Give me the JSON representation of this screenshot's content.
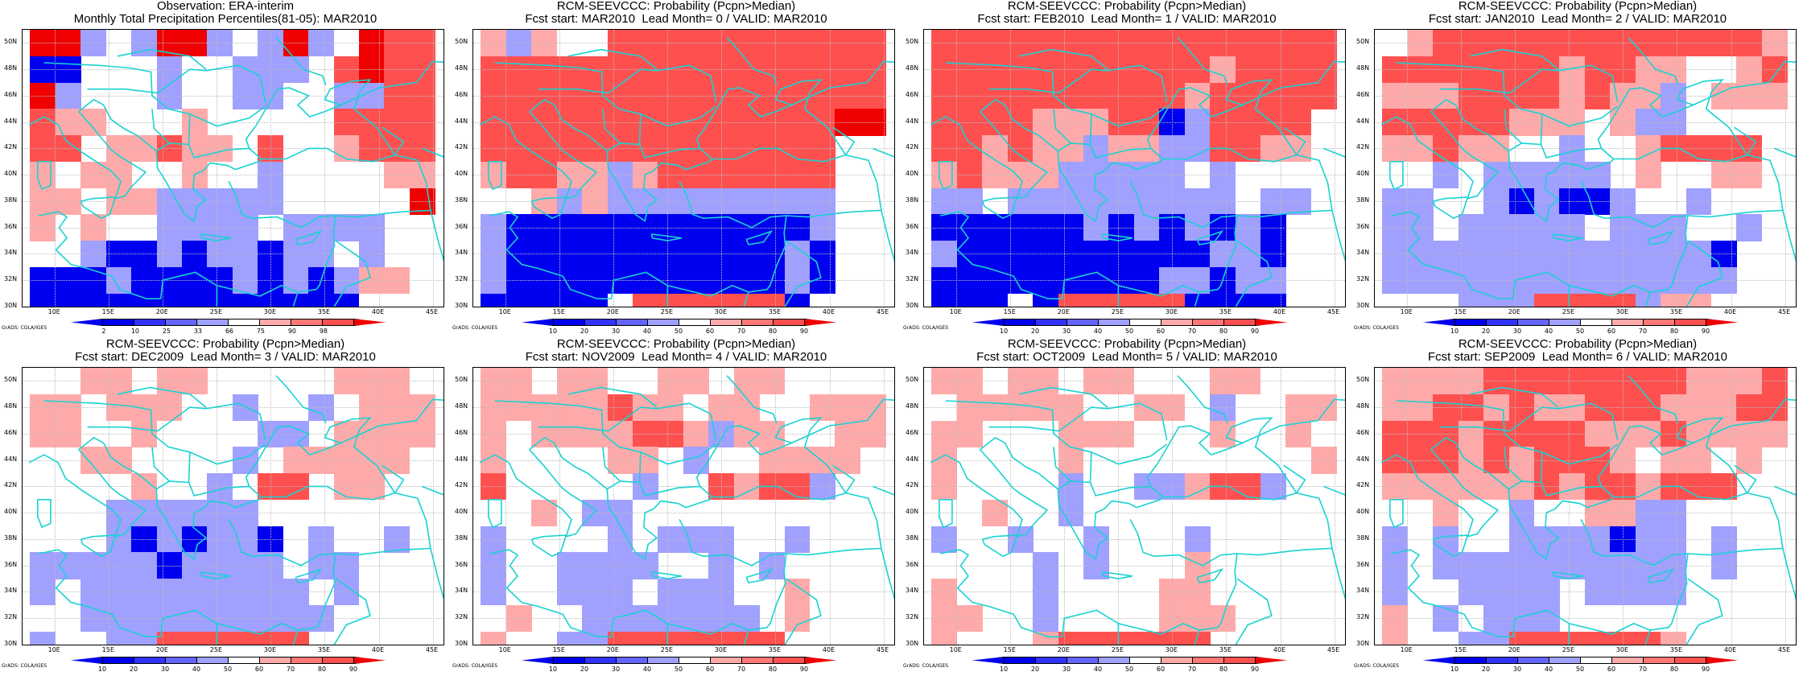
{
  "credit": "GrADS: COLA/IGES",
  "lat_labels": [
    "50N",
    "48N",
    "46N",
    "44N",
    "42N",
    "40N",
    "38N",
    "36N",
    "34N",
    "32N",
    "30N"
  ],
  "lon_labels": [
    "10E",
    "15E",
    "20E",
    "25E",
    "30E",
    "35E",
    "40E",
    "45E"
  ],
  "colors": {
    "coast": "#19d2d2",
    "blue3": "#0000f0",
    "blue2": "#3232ff",
    "blue1": "#a0a0ff",
    "red1": "#ffaaaa",
    "red2": "#ff5050",
    "red3": "#f00000"
  },
  "chart_data": [
    {
      "type": "heatmap",
      "title": "Observation: ERA-interim\nMonthly Total Precipitation Percentiles(81-05): MAR2010",
      "colorbar_labels": [
        "2",
        "10",
        "25",
        "33",
        "66",
        "75",
        "90",
        "98"
      ],
      "x_range": [
        7,
        46
      ],
      "y_range": [
        30,
        51
      ],
      "grid": [
        "--b b--b b-b -RR",
        "BB...b..bbb.R-RR",
        "-b...b..bb..bbRR",
        "Rrr...r.....RRRR",
        "RR.rrRrr.R..rRRR",
        "r.rr..r..b....rr",
        "rr.rrbbbbb.....-",
        "r.r..bbbb.bbbb..",
        "..bBBbBbbBbb.b..",
        "BBBbBBBBbBbBbrr.",
        "BBBBBBBBBBBBB..."
      ]
    },
    {
      "type": "heatmap",
      "title": "RCM-SEEVCCC: Probability (Pcpn>Median)\nFcst start: MAR2010  Lead Month= 0 / VALID: MAR2010",
      "colorbar_labels": [
        "10",
        "20",
        "30",
        "40",
        "50",
        "60",
        "70",
        "80",
        "90"
      ],
      "x_range": [
        7,
        46
      ],
      "y_range": [
        30,
        51
      ],
      "grid": [
        "rbr..RRRRRRRRRRR",
        "RRRRRRRRRRRRRRRR",
        "RRRRRRRRRRRRRRRR",
        "RRRRRRRRRRRRRR--",
        "RRRRRRRRRRRRRR..",
        "rRRrrbrRRRRRRR..",
        "..rbrbbbbbbbbb..",
        "bBBBBBBBBBBBBb..",
        "bBBBBBBBBBBBbB..",
        "bBBBBBBBBBBBbB..",
        "BBBBB.RRRRRRB..."
      ]
    },
    {
      "type": "heatmap",
      "title": "RCM-SEEVCCC: Probability (Pcpn>Median)\nFcst start: FEB2010  Lead Month= 1 / VALID: MAR2010",
      "colorbar_labels": [
        "10",
        "20",
        "30",
        "40",
        "50",
        "60",
        "70",
        "80",
        "90"
      ],
      "x_range": [
        7,
        46
      ],
      "y_range": [
        30,
        51
      ],
      "grid": [
        "RRRRRRRRRRRRRRRR",
        "RRRRRRRRRRRrRRRR",
        "RRRRRRRRRRrRRRRR",
        "RRRRrrrRRBbRRRR.",
        "RRrRrrbrrbbRRrr.",
        "rRrrrbbbbb.b....",
        "bb.bbbbbbbbb.bb.",
        "BBBBBBbBbBbBbB..",
        "bBBBBBBBBBBbbB..",
        "BBBBBBBBBbbBbb..",
        "BBB.BRRRRRBBBB.."
      ]
    },
    {
      "type": "heatmap",
      "title": "RCM-SEEVCCC: Probability (Pcpn>Median)\nFcst start: JAN2010  Lead Month= 2 / VALID: MAR2010",
      "colorbar_labels": [
        "10",
        "20",
        "30",
        "40",
        "50",
        "60",
        "70",
        "80",
        "90"
      ],
      "x_range": [
        7,
        46
      ],
      "y_range": [
        30,
        51
      ],
      "grid": [
        ".rRRRRRRRRRRRRRr",
        "RRRRRRRrRRrr..rR",
        "rrrRRRRrRrrb.rrr",
        "RRRRRrrr.rbb....",
        "rrRrr..b..rRRRR.",
        "..b.bbbbb.r..rr.",
        "bb..bBbBBb..b...",
        "bb.bbbbb.bbb..b.",
        "bbbbbbbbbbbbbB..",
        "bbbbbbbbbbbbbb..",
        "...bbbRRRRbrr..."
      ]
    },
    {
      "type": "heatmap",
      "title": "RCM-SEEVCCC: Probability (Pcpn>Median)\nFcst start: DEC2009  Lead Month= 3 / VALID: MAR2010",
      "colorbar_labels": [
        "10",
        "20",
        "30",
        "40",
        "50",
        "60",
        "70",
        "80",
        "90"
      ],
      "x_range": [
        7,
        46
      ],
      "y_range": [
        30,
        51
      ],
      "grid": [
        "..rr.rr.....rrr.",
        "rr.rrr..b..b.rrr",
        "rr..r....bb.rrrr",
        "..rr....b.rrrrr.",
        "....r..b.RR.rr..",
        "...bbbbbb.......",
        "...bBbBbbB.b..b.",
        "bbbbbBbbbb.bb...",
        "b.bbbbbbbbb.b...",
        "..bbbbbbbbbb....",
        "b..bbRRRRRR....."
      ]
    },
    {
      "type": "heatmap",
      "title": "RCM-SEEVCCC: Probability (Pcpn>Median)\nFcst start: NOV2009  Lead Month= 4 / VALID: MAR2010",
      "colorbar_labels": [
        "10",
        "20",
        "30",
        "40",
        "50",
        "60",
        "70",
        "80",
        "90"
      ],
      "x_range": [
        7,
        46
      ],
      "y_range": [
        30,
        51
      ],
      "grid": [
        "rr.rr..rr.rr....",
        "rrrrrRrr.rr..rrr",
        "r.rrrrRRrbrr..rr",
        "r....rr.b..rrrr.",
        "R.....b..RrRRb..",
        "..r.bb..........",
        "b....b.bbb..b...",
        "b..bbbb..b.b....",
        "b..bbb.bbb..r...",
        ".r..bbbbbbb.r...",
        "r..bbRRRRRRR...."
      ]
    },
    {
      "type": "heatmap",
      "title": "RCM-SEEVCCC: Probability (Pcpn>Median)\nFcst start: OCT2009  Lead Month= 5 / VALID: MAR2010",
      "colorbar_labels": [
        "10",
        "20",
        "30",
        "40",
        "50",
        "60",
        "70",
        "80",
        "90"
      ],
      "x_range": [
        7,
        46
      ],
      "y_range": [
        30,
        51
      ],
      "grid": [
        "rr.rr.rr...rr...",
        ".rrrrr..rr.b..rr",
        "rr...rrr...r..r.",
        "r....r.........r",
        "r....b..bbrRRb..",
        "..r..b..........",
        "b..b..b...b.....",
        "....b.b...r.....",
        "r...b....rr.....",
        "rr..b....rrr....",
        "r...rRRRRRR....."
      ]
    },
    {
      "type": "heatmap",
      "title": "RCM-SEEVCCC: Probability (Pcpn>Median)\nFcst start: SEP2009  Lead Month= 6 / VALID: MAR2010",
      "colorbar_labels": [
        "10",
        "20",
        "30",
        "40",
        "50",
        "60",
        "70",
        "80",
        "90"
      ],
      "x_range": [
        7,
        46
      ],
      "y_range": [
        30,
        51
      ],
      "grid": [
        "rrrrRRRRRRRRrrrR",
        "rrRRrRrrRRRrrrRR",
        "RRRrRRRRrrrRrrrr",
        "RRRrRrRRRr.rr.r.",
        "rrrrrrRrRRrRRR..",
        "..r..b..rrbb....",
        "b.b..bbbbBbb.b..",
        "b.bbbbbbbbbb.b..",
        "b..bbbb.bbbb....",
        "r.b.bbb.........",
        "r..bbRRRRRRr...."
      ]
    }
  ]
}
